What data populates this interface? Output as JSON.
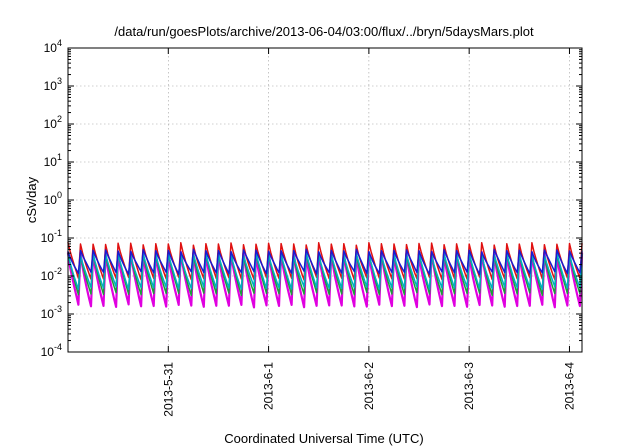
{
  "chart_data": {
    "type": "line",
    "title": "/data/run/goesPlots/archive/2013-06-04/03:00/flux/../bryn/5daysMars.plot",
    "xlabel": "Coordinated Universal Time (UTC)",
    "ylabel": "cSv/day",
    "yscale": "log",
    "ylim": [
      0.0001,
      10000
    ],
    "y_ticks": [
      {
        "base": "10",
        "exp": "-4",
        "value": 0.0001
      },
      {
        "base": "10",
        "exp": "-3",
        "value": 0.001
      },
      {
        "base": "10",
        "exp": "-2",
        "value": 0.01
      },
      {
        "base": "10",
        "exp": "-1",
        "value": 0.1
      },
      {
        "base": "10",
        "exp": "0",
        "value": 1
      },
      {
        "base": "10",
        "exp": "1",
        "value": 10
      },
      {
        "base": "10",
        "exp": "2",
        "value": 100
      },
      {
        "base": "10",
        "exp": "3",
        "value": 1000
      },
      {
        "base": "10",
        "exp": "4",
        "value": 10000
      }
    ],
    "xlim": [
      "2013-05-30T00:00",
      "2013-06-04T03:00"
    ],
    "x_ticks": [
      "2013-5-31",
      "2013-6-1",
      "2013-6-2",
      "2013-6-3",
      "2013-6-4"
    ],
    "grid": true,
    "legend": "none",
    "cycle_hours": 3,
    "series": [
      {
        "color": "#e000e0",
        "peak": 0.04,
        "trough": 0.0009
      },
      {
        "color": "#e01010",
        "peak": 0.085,
        "trough": 0.006
      },
      {
        "color": "#1a9e3a",
        "peak": 0.055,
        "trough": 0.0025
      },
      {
        "color": "#00b0c0",
        "peak": 0.06,
        "trough": 0.004
      },
      {
        "color": "#1a1ad0",
        "peak": 0.07,
        "trough": 0.011
      }
    ]
  }
}
